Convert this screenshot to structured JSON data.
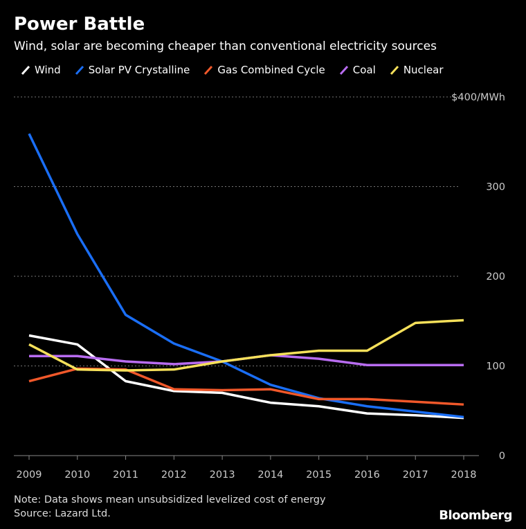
{
  "title": "Power Battle",
  "subtitle": "Wind, solar are becoming cheaper than conventional electricity sources",
  "note": "Note: Data shows mean unsubsidized levelized cost of energy",
  "source": "Source: Lazard Ltd.",
  "logo": "Bloomberg",
  "chart_data": {
    "type": "line",
    "title": "Power Battle",
    "x": [
      2009,
      2010,
      2011,
      2012,
      2013,
      2014,
      2015,
      2016,
      2017,
      2018
    ],
    "x_tick_labels": [
      "2009",
      "2010",
      "2011",
      "2012",
      "2013",
      "2014",
      "2015",
      "2016",
      "2017",
      "2018"
    ],
    "ylim": [
      0,
      400
    ],
    "y_ticks": [
      0,
      100,
      200,
      300,
      400
    ],
    "y_tick_labels": [
      "0",
      "100",
      "200",
      "300",
      "$400/MWh"
    ],
    "grid": true,
    "legend_position": "top-left",
    "series": [
      {
        "name": "Wind",
        "color": "#ffffff",
        "values": [
          134,
          124,
          83,
          72,
          70,
          59,
          55,
          47,
          45,
          42
        ]
      },
      {
        "name": "Solar PV Crystalline",
        "color": "#1a6ef5",
        "values": [
          359,
          247,
          157,
          125,
          105,
          79,
          64,
          55,
          49,
          43
        ]
      },
      {
        "name": "Gas Combined Cycle",
        "color": "#f0582a",
        "values": [
          83,
          97,
          96,
          74,
          73,
          74,
          63,
          63,
          60,
          57
        ]
      },
      {
        "name": "Coal",
        "color": "#b86cf0",
        "values": [
          111,
          111,
          105,
          102,
          105,
          112,
          108,
          101,
          101,
          101
        ]
      },
      {
        "name": "Nuclear",
        "color": "#f5e05a",
        "values": [
          124,
          96,
          95,
          96,
          105,
          112,
          117,
          117,
          148,
          151
        ]
      }
    ]
  }
}
